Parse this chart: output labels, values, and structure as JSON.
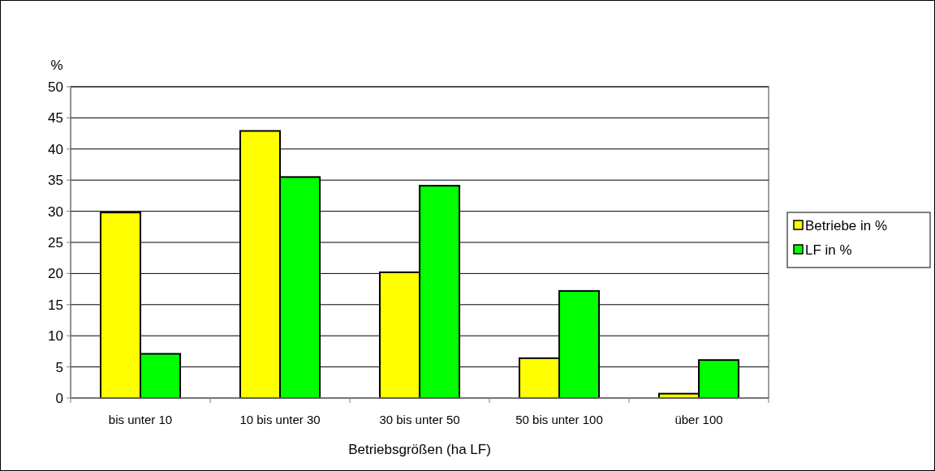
{
  "chart_data": {
    "type": "bar",
    "ylabel": "%",
    "xlabel": "Betriebsgrößen (ha  LF)",
    "categories": [
      "bis unter 10",
      "10 bis unter 30",
      "30 bis unter 50",
      "50 bis unter 100",
      "über 100"
    ],
    "series": [
      {
        "name": "Betriebe in %",
        "color": "#ffff00",
        "values": [
          29.8,
          42.9,
          20.2,
          6.4,
          0.7
        ]
      },
      {
        "name": "LF in %",
        "color": "#00ff00",
        "values": [
          7.1,
          35.5,
          34.1,
          17.2,
          6.1
        ]
      }
    ],
    "ylim": [
      0,
      50
    ],
    "yticks": [
      0,
      5,
      10,
      15,
      20,
      25,
      30,
      35,
      40,
      45,
      50
    ],
    "grid": "y",
    "legend": "right"
  }
}
